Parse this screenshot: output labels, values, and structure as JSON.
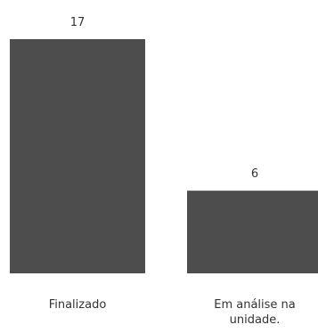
{
  "chart_data": {
    "type": "bar",
    "categories": [
      "Finalizado",
      "Em análise na unidade."
    ],
    "category_lines": [
      [
        "Finalizado"
      ],
      [
        "Em análise na",
        "unidade."
      ]
    ],
    "values": [
      17,
      6
    ],
    "data_labels": [
      "17",
      "6"
    ],
    "title": "",
    "xlabel": "",
    "ylabel": "",
    "ylim": [
      0,
      17
    ],
    "grid": false,
    "legend": "none",
    "colors": {
      "bar": "#4d4d4d",
      "text": "#333333",
      "background": "#ffffff"
    }
  }
}
